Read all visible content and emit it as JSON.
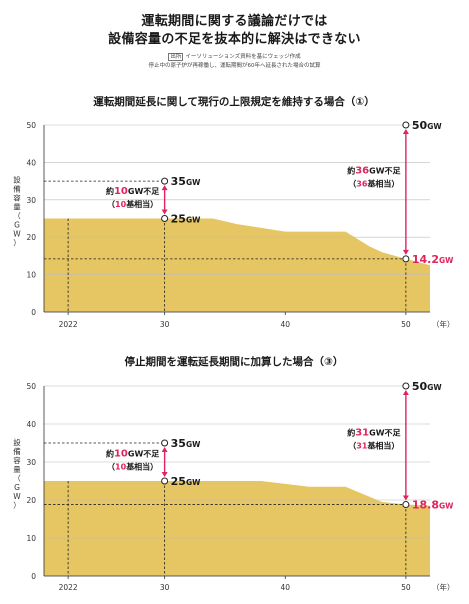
{
  "header": {
    "title_line1": "運転期間に関する議論だけでは",
    "title_line2": "設備容量の不足を抜本的に解決はできない",
    "source_tag": "出所",
    "source_text": "イーソリューションズ資料を基にウェッジ作成",
    "note": "停止中の原子炉が再稼働し、運転期間が60年へ延長された場合の試算"
  },
  "chart_data": [
    {
      "type": "area",
      "title": "運転期間延長に関して現行の上限規定を維持する場合（①）",
      "ylabel": "設備容量（GW）",
      "xlabel": "（年）",
      "ylim": [
        0,
        50
      ],
      "xlim": [
        2020,
        2052
      ],
      "yticks": [
        "0",
        "10",
        "20",
        "30",
        "40",
        "50"
      ],
      "xticks": [
        "2022",
        "30",
        "40",
        "50"
      ],
      "x": [
        2020,
        2030,
        2034,
        2036,
        2040,
        2045,
        2046,
        2047,
        2048,
        2050,
        2052
      ],
      "values": [
        25,
        25,
        25,
        23.5,
        21.5,
        21.5,
        19.5,
        17.5,
        16,
        14.2,
        12.5
      ],
      "fill_color": "#e5c662",
      "points": [
        {
          "label": "35",
          "unit": "GW",
          "x": 2030,
          "y": 35
        },
        {
          "label": "25",
          "unit": "GW",
          "x": 2030,
          "y": 25
        },
        {
          "label": "50",
          "unit": "GW",
          "x": 2050,
          "y": 50
        },
        {
          "label": "14.2",
          "unit": "GW",
          "x": 2050,
          "y": 14.2
        }
      ],
      "annotations": [
        {
          "pre": "約",
          "num": "10",
          "post": "GW不足",
          "sub_pre": "（",
          "sub_num": "10",
          "sub_post": "基相当）"
        },
        {
          "pre": "約",
          "num": "36",
          "post": "GW不足",
          "sub_pre": "（",
          "sub_num": "36",
          "sub_post": "基相当）"
        }
      ]
    },
    {
      "type": "area",
      "title": "停止期間を運転延長期間に加算した場合（③）",
      "ylabel": "設備容量（GW）",
      "xlabel": "（年）",
      "ylim": [
        0,
        50
      ],
      "xlim": [
        2020,
        2052
      ],
      "yticks": [
        "0",
        "10",
        "20",
        "30",
        "40",
        "50"
      ],
      "xticks": [
        "2022",
        "30",
        "40",
        "50"
      ],
      "x": [
        2020,
        2030,
        2038,
        2042,
        2045,
        2048,
        2050,
        2052
      ],
      "values": [
        25,
        25,
        25,
        23.5,
        23.5,
        19.5,
        18.8,
        18.5
      ],
      "fill_color": "#e5c662",
      "points": [
        {
          "label": "35",
          "unit": "GW",
          "x": 2030,
          "y": 35
        },
        {
          "label": "25",
          "unit": "GW",
          "x": 2030,
          "y": 25
        },
        {
          "label": "50",
          "unit": "GW",
          "x": 2050,
          "y": 50
        },
        {
          "label": "18.8",
          "unit": "GW",
          "x": 2050,
          "y": 18.8
        }
      ],
      "annotations": [
        {
          "pre": "約",
          "num": "10",
          "post": "GW不足",
          "sub_pre": "（",
          "sub_num": "10",
          "sub_post": "基相当）"
        },
        {
          "pre": "約",
          "num": "31",
          "post": "GW不足",
          "sub_pre": "（",
          "sub_num": "31",
          "sub_post": "基相当）"
        }
      ]
    }
  ]
}
